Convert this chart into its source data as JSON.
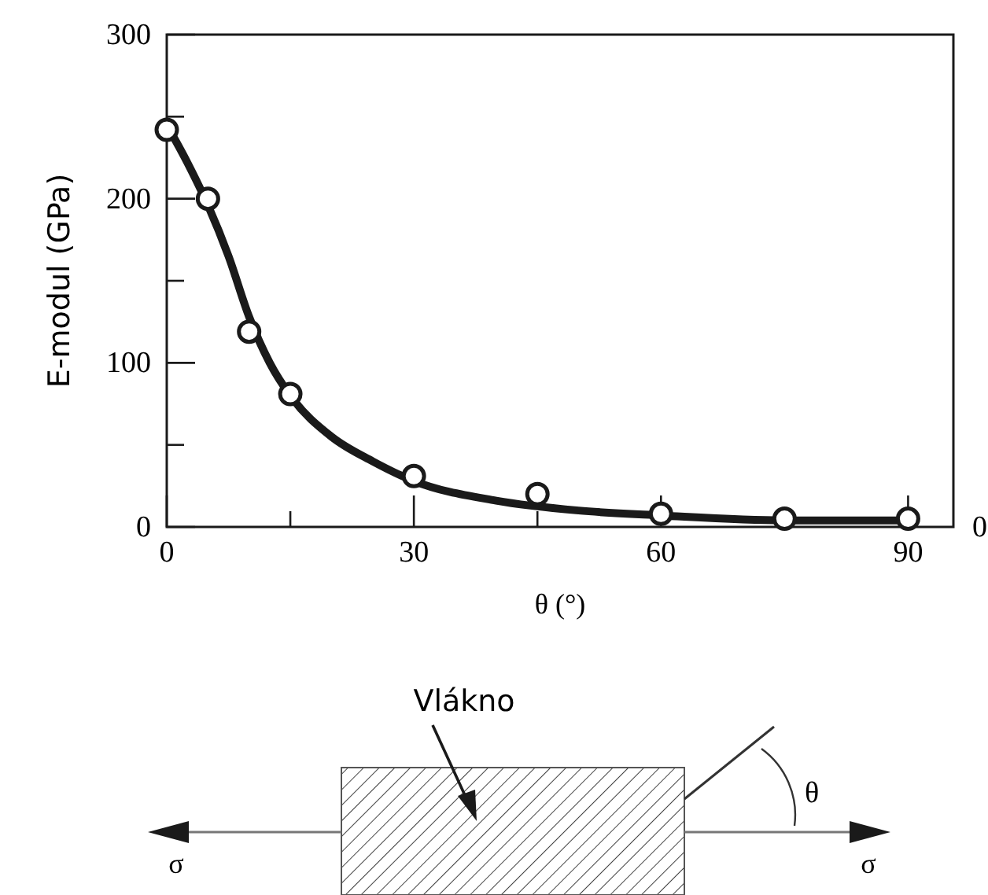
{
  "chart_data": {
    "type": "scatter",
    "xlabel": "θ (°)",
    "ylabel": "E-modul (GPa)",
    "xlim": [
      0,
      95.5
    ],
    "xticks": [
      0,
      {
        "value": 15,
        "label": null
      },
      30,
      {
        "value": 45,
        "label": null
      },
      60,
      90
    ],
    "ylim": [
      0,
      300
    ],
    "yticks": [
      0,
      {
        "value": 50,
        "label": null
      },
      100,
      {
        "value": 150,
        "label": null
      },
      200,
      {
        "value": 250,
        "label": null
      },
      300
    ],
    "marker": "circle",
    "series": [
      {
        "type": "line",
        "marker": "none",
        "color": "#1a1a1a",
        "x": [
          0,
          2.5,
          5,
          7.5,
          10,
          12.5,
          15,
          20,
          25,
          30,
          40,
          50,
          60,
          75,
          90
        ],
        "values": [
          245,
          222,
          196,
          165,
          128,
          100,
          80,
          55,
          40,
          28,
          16,
          10,
          7,
          4,
          4
        ]
      },
      {
        "color": "#1a1a1a",
        "x": [
          0,
          5,
          10,
          15,
          30,
          45,
          60,
          75,
          90
        ],
        "values": [
          242,
          200,
          119,
          81,
          31,
          20,
          8,
          5,
          5
        ]
      }
    ],
    "annotations": [
      "Vlákno",
      "σ",
      "σ",
      "θ",
      "0"
    ]
  }
}
